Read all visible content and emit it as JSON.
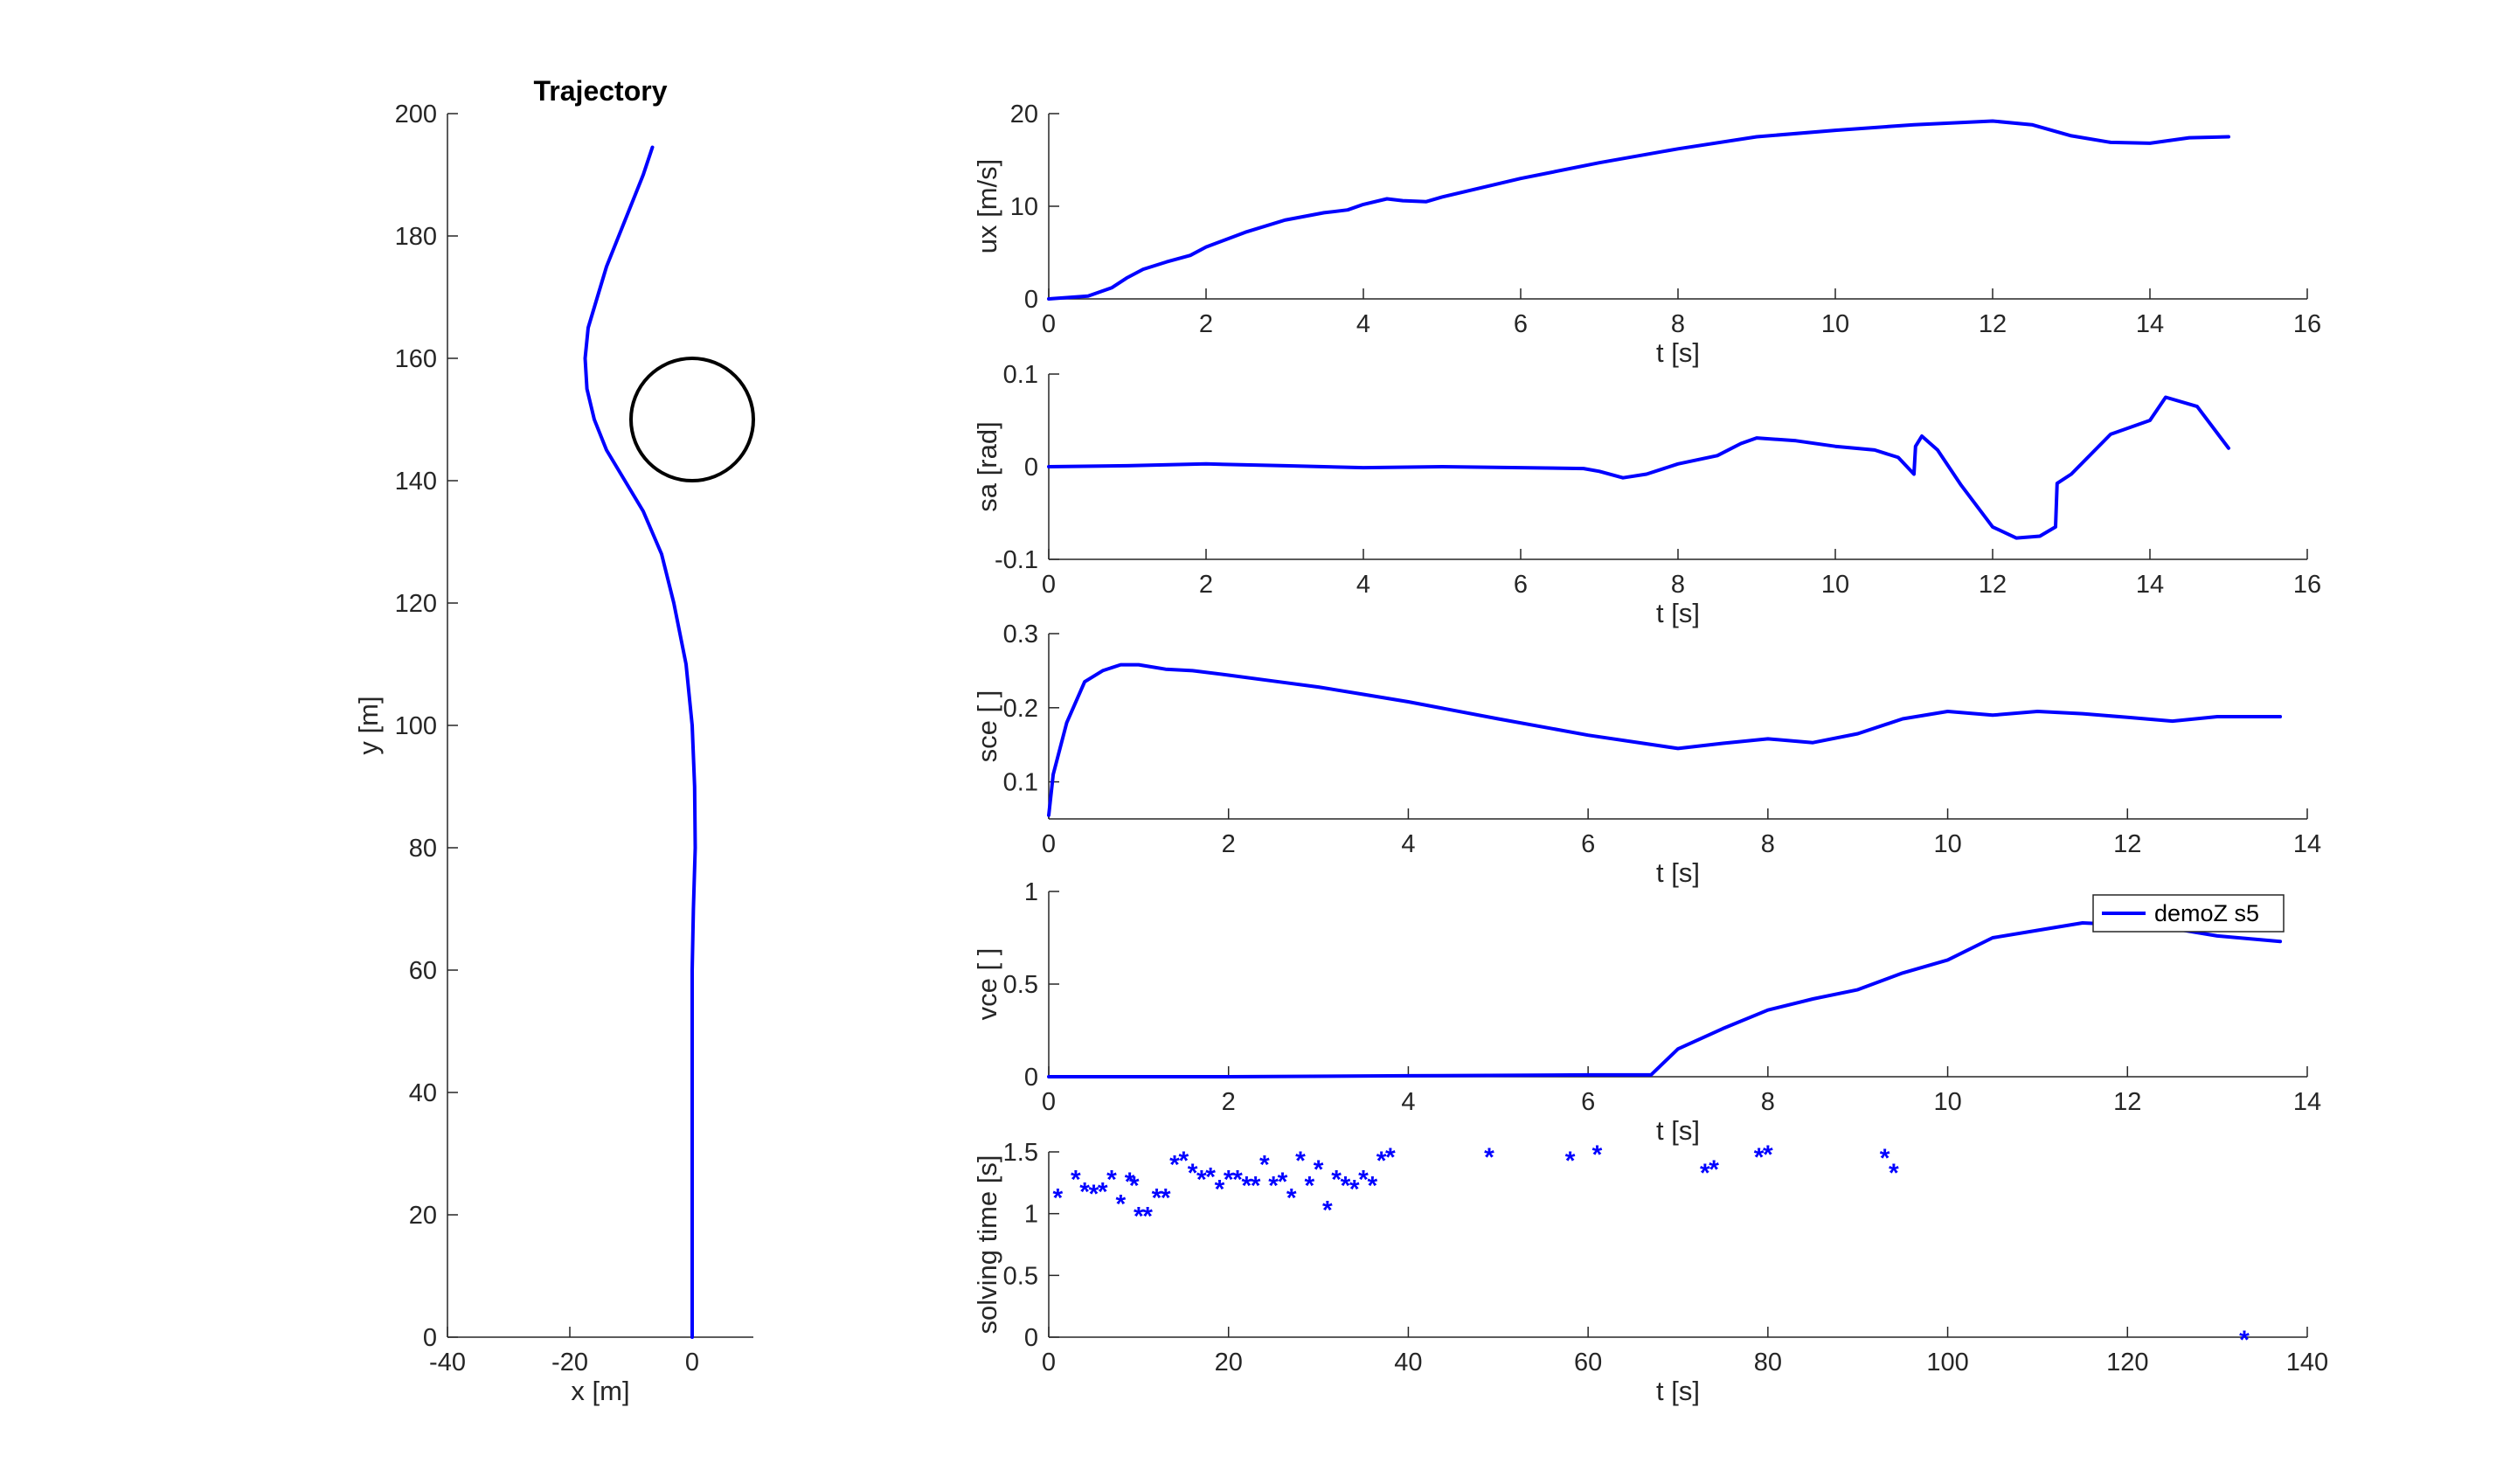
{
  "figure": {
    "background": "#ffffff",
    "axis_color": "#262626",
    "line_color": "#0000ff",
    "obstacle_color": "#000000"
  },
  "chart_data": [
    {
      "id": "trajectory",
      "type": "line",
      "title": "Trajectory",
      "xlabel": "x [m]",
      "ylabel": "y [m]",
      "xlim": [
        -40,
        10
      ],
      "ylim": [
        0,
        200
      ],
      "xticks": [
        -40,
        -20,
        0
      ],
      "yticks": [
        0,
        20,
        40,
        60,
        80,
        100,
        120,
        140,
        160,
        180,
        200
      ],
      "grid": false,
      "series": [
        {
          "color": "#0000ff",
          "x": [
            0,
            0,
            0,
            0,
            0.2,
            0.5,
            0.4,
            0,
            -1,
            -3,
            -5,
            -8,
            -11,
            -14,
            -16,
            -17.2,
            -17.5,
            -17,
            -15.5,
            -14,
            -12,
            -10,
            -8,
            -6.5
          ],
          "y": [
            0,
            20,
            40,
            60,
            70,
            80,
            90,
            100,
            110,
            120,
            128,
            135,
            140,
            145,
            150,
            155,
            160,
            165,
            170,
            175,
            180,
            185,
            190,
            194.5
          ]
        }
      ],
      "circle": {
        "cx": 0,
        "cy": 150,
        "r": 10,
        "color": "#000000"
      }
    },
    {
      "id": "ux",
      "type": "line",
      "xlabel": "t [s]",
      "ylabel": "ux [m/s]",
      "xlim": [
        0,
        16
      ],
      "ylim": [
        0,
        20
      ],
      "xticks": [
        0,
        2,
        4,
        6,
        8,
        10,
        12,
        14,
        16
      ],
      "yticks": [
        0,
        10,
        20
      ],
      "grid": false,
      "series": [
        {
          "color": "#0000ff",
          "x": [
            0,
            0.5,
            0.8,
            1.0,
            1.2,
            1.5,
            1.8,
            2.0,
            2.5,
            3.0,
            3.5,
            3.8,
            4.0,
            4.3,
            4.5,
            4.8,
            5.0,
            6.0,
            7.0,
            8.0,
            9.0,
            10.0,
            11.0,
            12.0,
            12.5,
            13.0,
            13.5,
            14.0,
            14.5,
            15.0
          ],
          "y": [
            0,
            0.3,
            1.2,
            2.3,
            3.2,
            4.0,
            4.7,
            5.6,
            7.2,
            8.5,
            9.3,
            9.6,
            10.2,
            10.8,
            10.6,
            10.5,
            11.0,
            13.0,
            14.7,
            16.2,
            17.5,
            18.2,
            18.8,
            19.2,
            18.8,
            17.6,
            16.9,
            16.8,
            17.4,
            17.5
          ]
        }
      ]
    },
    {
      "id": "sa",
      "type": "line",
      "xlabel": "t [s]",
      "ylabel": "sa [rad]",
      "xlim": [
        0,
        16
      ],
      "ylim": [
        -0.1,
        0.1
      ],
      "xticks": [
        0,
        2,
        4,
        6,
        8,
        10,
        12,
        14,
        16
      ],
      "yticks": [
        -0.1,
        0,
        0.1
      ],
      "grid": false,
      "series": [
        {
          "color": "#0000ff",
          "x": [
            0,
            1,
            2,
            2.5,
            3,
            4,
            5,
            6,
            6.8,
            7.0,
            7.3,
            7.6,
            8.0,
            8.5,
            8.8,
            9.0,
            9.5,
            10.0,
            10.5,
            10.8,
            11.0,
            11.02,
            11.1,
            11.3,
            11.6,
            12.0,
            12.3,
            12.6,
            12.8,
            12.82,
            13.0,
            13.5,
            14.0,
            14.2,
            14.6,
            15.0
          ],
          "y": [
            0,
            0.001,
            0.003,
            0.002,
            0.001,
            -0.001,
            0,
            -0.001,
            -0.002,
            -0.005,
            -0.012,
            -0.008,
            0.003,
            0.012,
            0.025,
            0.031,
            0.028,
            0.022,
            0.018,
            0.01,
            -0.008,
            0.022,
            0.033,
            0.018,
            -0.02,
            -0.065,
            -0.077,
            -0.075,
            -0.065,
            -0.018,
            -0.008,
            0.035,
            0.05,
            0.075,
            0.065,
            0.02
          ]
        }
      ]
    },
    {
      "id": "sce",
      "type": "line",
      "xlabel": "t [s]",
      "ylabel": "sce [ ]",
      "xlim": [
        0,
        14
      ],
      "ylim": [
        0.05,
        0.3
      ],
      "xticks": [
        0,
        2,
        4,
        6,
        8,
        10,
        12,
        14
      ],
      "yticks": [
        0.1,
        0.2,
        0.3
      ],
      "grid": false,
      "series": [
        {
          "color": "#0000ff",
          "x": [
            0,
            0.05,
            0.2,
            0.4,
            0.6,
            0.8,
            1.0,
            1.3,
            1.6,
            2.0,
            2.5,
            3.0,
            3.5,
            4.0,
            5.0,
            6.0,
            7.0,
            7.5,
            8.0,
            8.5,
            9.0,
            9.5,
            10.0,
            10.5,
            11.0,
            11.5,
            12.0,
            12.5,
            13.0,
            13.7
          ],
          "y": [
            0.055,
            0.11,
            0.18,
            0.235,
            0.25,
            0.258,
            0.258,
            0.252,
            0.25,
            0.244,
            0.236,
            0.228,
            0.218,
            0.208,
            0.185,
            0.163,
            0.145,
            0.152,
            0.158,
            0.153,
            0.165,
            0.185,
            0.195,
            0.19,
            0.195,
            0.192,
            0.187,
            0.182,
            0.188,
            0.188
          ]
        }
      ]
    },
    {
      "id": "vce",
      "type": "line",
      "xlabel": "t [s]",
      "ylabel": "vce [ ]",
      "xlim": [
        0,
        14
      ],
      "ylim": [
        0,
        1
      ],
      "xticks": [
        0,
        2,
        4,
        6,
        8,
        10,
        12,
        14
      ],
      "yticks": [
        0,
        0.5,
        1
      ],
      "grid": false,
      "legend": {
        "location": "top-right",
        "entries": [
          "demoZ s5"
        ]
      },
      "series": [
        {
          "name": "demoZ s5",
          "color": "#0000ff",
          "x": [
            0,
            2,
            4,
            6,
            6.7,
            7.0,
            7.5,
            8.0,
            8.5,
            9.0,
            9.5,
            10.0,
            10.5,
            11.0,
            11.5,
            12.0,
            12.5,
            13.0,
            13.7
          ],
          "y": [
            0,
            0,
            0.005,
            0.01,
            0.01,
            0.15,
            0.26,
            0.36,
            0.42,
            0.47,
            0.56,
            0.63,
            0.75,
            0.79,
            0.83,
            0.82,
            0.8,
            0.76,
            0.73
          ]
        }
      ]
    },
    {
      "id": "solving_time",
      "type": "scatter",
      "xlabel": "t [s]",
      "ylabel": "solving time [s]",
      "xlim": [
        0,
        140
      ],
      "ylim": [
        0,
        1.5
      ],
      "xticks": [
        0,
        20,
        40,
        60,
        80,
        100,
        120,
        140
      ],
      "yticks": [
        0,
        0.5,
        1,
        1.5
      ],
      "grid": false,
      "marker": "*",
      "series": [
        {
          "color": "#0000ff",
          "x": [
            1,
            3,
            4,
            5,
            6,
            7,
            8,
            9,
            9.5,
            10,
            11,
            12,
            13,
            14,
            15,
            16,
            17,
            18,
            19,
            20,
            21,
            22,
            23,
            24,
            25,
            26,
            27,
            28,
            29,
            30,
            31,
            32,
            33,
            34,
            35,
            36,
            37,
            38,
            49,
            58,
            61,
            73,
            74,
            79,
            80,
            93,
            94,
            133
          ],
          "y": [
            1.15,
            1.3,
            1.2,
            1.18,
            1.2,
            1.3,
            1.1,
            1.28,
            1.25,
            1.0,
            1.0,
            1.15,
            1.15,
            1.42,
            1.45,
            1.35,
            1.3,
            1.32,
            1.22,
            1.3,
            1.3,
            1.25,
            1.25,
            1.42,
            1.25,
            1.28,
            1.15,
            1.45,
            1.25,
            1.38,
            1.05,
            1.3,
            1.25,
            1.22,
            1.3,
            1.25,
            1.45,
            1.48,
            1.48,
            1.45,
            1.5,
            1.35,
            1.38,
            1.48,
            1.5,
            1.47,
            1.35,
            0
          ]
        }
      ]
    }
  ]
}
